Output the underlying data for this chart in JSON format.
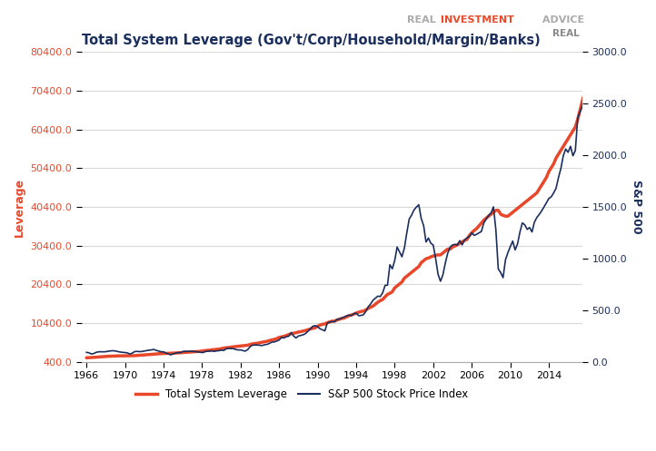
{
  "title": "Total System Leverage (Gov't/Corp/Household/Margin/Banks)",
  "watermark_real": "REAL ",
  "watermark_investment": "INVESTMENT",
  "watermark_advice": " ADVICE",
  "ylabel_left": "Leverage",
  "ylabel_right": "S&P 500",
  "left_color": "#e8472a",
  "right_color": "#1b2f5e",
  "background_color": "#ffffff",
  "grid_color": "#d8d8d8",
  "yticks_left": [
    400.0,
    10400.0,
    20400.0,
    30400.0,
    40400.0,
    50400.0,
    60400.0,
    70400.0,
    80400.0
  ],
  "yticks_right": [
    0.0,
    500.0,
    1000.0,
    1500.0,
    2000.0,
    2500.0,
    3000.0
  ],
  "xticks": [
    1966,
    1970,
    1974,
    1978,
    1982,
    1986,
    1990,
    1994,
    1998,
    2002,
    2006,
    2010,
    2014
  ],
  "xlim": [
    1965.5,
    2017.5
  ],
  "ylim_left": [
    400.0,
    80400.0
  ],
  "ylim_right": [
    0.0,
    3000.0
  ],
  "legend_labels": [
    "Total System Leverage",
    "S&P 500 Stock Price Index"
  ],
  "sp500_quarterly": {
    "dates": [
      1966.0,
      1966.25,
      1966.5,
      1966.75,
      1967.0,
      1967.25,
      1967.5,
      1967.75,
      1968.0,
      1968.25,
      1968.5,
      1968.75,
      1969.0,
      1969.25,
      1969.5,
      1969.75,
      1970.0,
      1970.25,
      1970.5,
      1970.75,
      1971.0,
      1971.25,
      1971.5,
      1971.75,
      1972.0,
      1972.25,
      1972.5,
      1972.75,
      1973.0,
      1973.25,
      1973.5,
      1973.75,
      1974.0,
      1974.25,
      1974.5,
      1974.75,
      1975.0,
      1975.25,
      1975.5,
      1975.75,
      1976.0,
      1976.25,
      1976.5,
      1976.75,
      1977.0,
      1977.25,
      1977.5,
      1977.75,
      1978.0,
      1978.25,
      1978.5,
      1978.75,
      1979.0,
      1979.25,
      1979.5,
      1979.75,
      1980.0,
      1980.25,
      1980.5,
      1980.75,
      1981.0,
      1981.25,
      1981.5,
      1981.75,
      1982.0,
      1982.25,
      1982.5,
      1982.75,
      1983.0,
      1983.25,
      1983.5,
      1983.75,
      1984.0,
      1984.25,
      1984.5,
      1984.75,
      1985.0,
      1985.25,
      1985.5,
      1985.75,
      1986.0,
      1986.25,
      1986.5,
      1986.75,
      1987.0,
      1987.25,
      1987.5,
      1987.75,
      1988.0,
      1988.25,
      1988.5,
      1988.75,
      1989.0,
      1989.25,
      1989.5,
      1989.75,
      1990.0,
      1990.25,
      1990.5,
      1990.75,
      1991.0,
      1991.25,
      1991.5,
      1991.75,
      1992.0,
      1992.25,
      1992.5,
      1992.75,
      1993.0,
      1993.25,
      1993.5,
      1993.75,
      1994.0,
      1994.25,
      1994.5,
      1994.75,
      1995.0,
      1995.25,
      1995.5,
      1995.75,
      1996.0,
      1996.25,
      1996.5,
      1996.75,
      1997.0,
      1997.25,
      1997.5,
      1997.75,
      1998.0,
      1998.25,
      1998.5,
      1998.75,
      1999.0,
      1999.25,
      1999.5,
      1999.75,
      2000.0,
      2000.25,
      2000.5,
      2000.75,
      2001.0,
      2001.25,
      2001.5,
      2001.75,
      2002.0,
      2002.25,
      2002.5,
      2002.75,
      2003.0,
      2003.25,
      2003.5,
      2003.75,
      2004.0,
      2004.25,
      2004.5,
      2004.75,
      2005.0,
      2005.25,
      2005.5,
      2005.75,
      2006.0,
      2006.25,
      2006.5,
      2006.75,
      2007.0,
      2007.25,
      2007.5,
      2007.75,
      2008.0,
      2008.25,
      2008.5,
      2008.75,
      2009.0,
      2009.25,
      2009.5,
      2009.75,
      2010.0,
      2010.25,
      2010.5,
      2010.75,
      2011.0,
      2011.25,
      2011.5,
      2011.75,
      2012.0,
      2012.25,
      2012.5,
      2012.75,
      2013.0,
      2013.25,
      2013.5,
      2013.75,
      2014.0,
      2014.25,
      2014.5,
      2014.75,
      2015.0,
      2015.25,
      2015.5,
      2015.75,
      2016.0,
      2016.25,
      2016.5,
      2016.75,
      2017.0,
      2017.25,
      2017.5,
      2017.75
    ],
    "values": [
      92,
      88,
      77,
      80,
      92,
      97,
      98,
      97,
      98,
      103,
      106,
      108,
      105,
      100,
      95,
      92,
      90,
      87,
      76,
      84,
      99,
      101,
      99,
      100,
      105,
      109,
      113,
      116,
      120,
      111,
      104,
      98,
      97,
      86,
      77,
      68,
      78,
      84,
      90,
      88,
      100,
      102,
      101,
      103,
      102,
      100,
      97,
      95,
      89,
      96,
      103,
      103,
      107,
      101,
      106,
      108,
      114,
      110,
      126,
      131,
      129,
      128,
      120,
      115,
      116,
      109,
      104,
      120,
      148,
      162,
      163,
      163,
      160,
      158,
      166,
      169,
      179,
      191,
      193,
      201,
      211,
      237,
      231,
      244,
      248,
      284,
      251,
      231,
      250,
      256,
      262,
      274,
      297,
      320,
      345,
      350,
      340,
      320,
      310,
      300,
      375,
      385,
      390,
      389,
      410,
      414,
      424,
      435,
      445,
      452,
      448,
      466,
      471,
      447,
      449,
      456,
      487,
      533,
      560,
      597,
      616,
      636,
      632,
      668,
      740,
      742,
      940,
      901,
      980,
      1111,
      1063,
      1017,
      1100,
      1245,
      1380,
      1420,
      1469,
      1498,
      1520,
      1388,
      1320,
      1160,
      1198,
      1148,
      1130,
      1000,
      847,
      780,
      841,
      955,
      1050,
      1111,
      1131,
      1137,
      1130,
      1173,
      1132,
      1181,
      1199,
      1213,
      1249,
      1224,
      1234,
      1248,
      1262,
      1345,
      1381,
      1418,
      1440,
      1500,
      1280,
      900,
      864,
      815,
      988,
      1057,
      1115,
      1169,
      1083,
      1141,
      1257,
      1345,
      1326,
      1282,
      1300,
      1257,
      1351,
      1397,
      1426,
      1461,
      1499,
      1540,
      1581,
      1597,
      1635,
      1680,
      1783,
      1872,
      1994,
      2059,
      2028,
      2086,
      1994,
      2044,
      2364,
      2423,
      2477,
      2674
    ]
  },
  "leverage_quarterly": {
    "dates": [
      1966.0,
      1966.25,
      1966.5,
      1966.75,
      1967.0,
      1967.25,
      1967.5,
      1967.75,
      1968.0,
      1968.25,
      1968.5,
      1968.75,
      1969.0,
      1969.25,
      1969.5,
      1969.75,
      1970.0,
      1970.25,
      1970.5,
      1970.75,
      1971.0,
      1971.25,
      1971.5,
      1971.75,
      1972.0,
      1972.25,
      1972.5,
      1972.75,
      1973.0,
      1973.25,
      1973.5,
      1973.75,
      1974.0,
      1974.25,
      1974.5,
      1974.75,
      1975.0,
      1975.25,
      1975.5,
      1975.75,
      1976.0,
      1976.25,
      1976.5,
      1976.75,
      1977.0,
      1977.25,
      1977.5,
      1977.75,
      1978.0,
      1978.25,
      1978.5,
      1978.75,
      1979.0,
      1979.25,
      1979.5,
      1979.75,
      1980.0,
      1980.25,
      1980.5,
      1980.75,
      1981.0,
      1981.25,
      1981.5,
      1981.75,
      1982.0,
      1982.25,
      1982.5,
      1982.75,
      1983.0,
      1983.25,
      1983.5,
      1983.75,
      1984.0,
      1984.25,
      1984.5,
      1984.75,
      1985.0,
      1985.25,
      1985.5,
      1985.75,
      1986.0,
      1986.25,
      1986.5,
      1986.75,
      1987.0,
      1987.25,
      1987.5,
      1987.75,
      1988.0,
      1988.25,
      1988.5,
      1988.75,
      1989.0,
      1989.25,
      1989.5,
      1989.75,
      1990.0,
      1990.25,
      1990.5,
      1990.75,
      1991.0,
      1991.25,
      1991.5,
      1991.75,
      1992.0,
      1992.25,
      1992.5,
      1992.75,
      1993.0,
      1993.25,
      1993.5,
      1993.75,
      1994.0,
      1994.25,
      1994.5,
      1994.75,
      1995.0,
      1995.25,
      1995.5,
      1995.75,
      1996.0,
      1996.25,
      1996.5,
      1996.75,
      1997.0,
      1997.25,
      1997.5,
      1997.75,
      1998.0,
      1998.25,
      1998.5,
      1998.75,
      1999.0,
      1999.25,
      1999.5,
      1999.75,
      2000.0,
      2000.25,
      2000.5,
      2000.75,
      2001.0,
      2001.25,
      2001.5,
      2001.75,
      2002.0,
      2002.25,
      2002.5,
      2002.75,
      2003.0,
      2003.25,
      2003.5,
      2003.75,
      2004.0,
      2004.25,
      2004.5,
      2004.75,
      2005.0,
      2005.25,
      2005.5,
      2005.75,
      2006.0,
      2006.25,
      2006.5,
      2006.75,
      2007.0,
      2007.25,
      2007.5,
      2007.75,
      2008.0,
      2008.25,
      2008.5,
      2008.75,
      2009.0,
      2009.25,
      2009.5,
      2009.75,
      2010.0,
      2010.25,
      2010.5,
      2010.75,
      2011.0,
      2011.25,
      2011.5,
      2011.75,
      2012.0,
      2012.25,
      2012.5,
      2012.75,
      2013.0,
      2013.25,
      2013.5,
      2013.75,
      2014.0,
      2014.25,
      2014.5,
      2014.75,
      2015.0,
      2015.25,
      2015.5,
      2015.75,
      2016.0,
      2016.25,
      2016.5,
      2016.75,
      2017.0,
      2017.25,
      2017.5,
      2017.75
    ],
    "values": [
      1450,
      1480,
      1520,
      1560,
      1600,
      1650,
      1700,
      1750,
      1800,
      1840,
      1870,
      1900,
      1920,
      1940,
      1950,
      1960,
      1950,
      1960,
      1970,
      1980,
      2000,
      2050,
      2100,
      2150,
      2200,
      2250,
      2300,
      2350,
      2400,
      2450,
      2500,
      2530,
      2560,
      2580,
      2600,
      2620,
      2650,
      2680,
      2720,
      2750,
      2800,
      2830,
      2870,
      2900,
      2950,
      3000,
      3050,
      3100,
      3200,
      3280,
      3360,
      3400,
      3500,
      3560,
      3620,
      3700,
      3800,
      3950,
      4050,
      4100,
      4200,
      4280,
      4350,
      4400,
      4500,
      4560,
      4620,
      4700,
      4900,
      5050,
      5150,
      5200,
      5350,
      5480,
      5600,
      5700,
      5900,
      6050,
      6200,
      6400,
      6700,
      6850,
      7000,
      7200,
      7450,
      7650,
      7800,
      7900,
      8100,
      8200,
      8350,
      8500,
      8700,
      8900,
      9050,
      9200,
      9600,
      9900,
      10100,
      10200,
      10500,
      10700,
      10900,
      10900,
      11200,
      11400,
      11600,
      11700,
      12000,
      12300,
      12500,
      12700,
      13000,
      13200,
      13400,
      13500,
      13800,
      14200,
      14500,
      14800,
      15300,
      15800,
      16200,
      16500,
      17200,
      17800,
      18100,
      18500,
      19500,
      20000,
      20500,
      21000,
      22000,
      22500,
      23000,
      23500,
      24000,
      24500,
      25000,
      26000,
      26500,
      27000,
      27200,
      27500,
      27700,
      27900,
      28000,
      28000,
      28500,
      29000,
      29500,
      29500,
      30000,
      30300,
      30600,
      31000,
      31400,
      31700,
      32000,
      33000,
      33700,
      34300,
      34800,
      35500,
      36200,
      37000,
      37500,
      38000,
      38500,
      39000,
      39500,
      39500,
      38500,
      38200,
      38000,
      38000,
      38500,
      39000,
      39500,
      40000,
      40500,
      41000,
      41500,
      42000,
      42500,
      43000,
      43500,
      44000,
      45000,
      46000,
      47000,
      48000,
      49500,
      50500,
      51500,
      53000,
      54000,
      55000,
      56000,
      57000,
      58000,
      59000,
      60000,
      61000,
      63000,
      65500,
      68000,
      70000
    ]
  }
}
